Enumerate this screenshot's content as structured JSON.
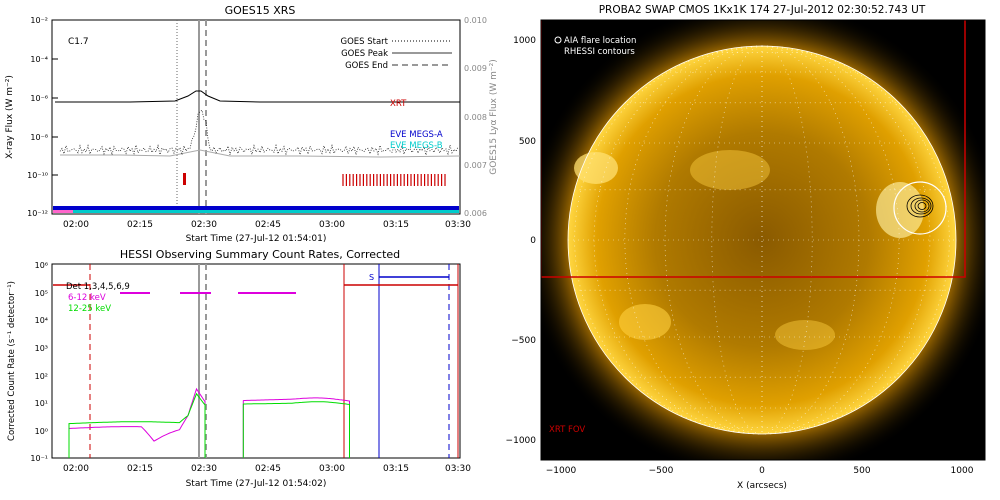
{
  "goes": {
    "title": "GOES15 XRS",
    "ylabel": "X-ray Flux (W m⁻²)",
    "y2label": "GOES15 Lyα Flux (W m⁻²)",
    "class_label": "C1.7",
    "legend": {
      "start": "GOES Start",
      "peak": "GOES Peak",
      "end": "GOES End"
    },
    "xlabel": "Start Time (27-Jul-12 01:54:01)",
    "xticks": [
      "02:00",
      "02:15",
      "02:30",
      "02:45",
      "03:00",
      "03:15",
      "03:30"
    ],
    "yticks": [
      "10⁻²",
      "10⁻⁴",
      "10⁻⁶",
      "10⁻⁸",
      "10⁻¹⁰",
      "10⁻¹²"
    ],
    "y2ticks": [
      "0.010",
      "0.009",
      "0.008",
      "0.007",
      "0.006"
    ],
    "labels": {
      "xrt": "XRT",
      "eve_a": "EVE MEGS-A",
      "eve_b": "EVE MEGS-B"
    }
  },
  "hessi": {
    "title": "HESSI Observing Summary Count Rates, Corrected",
    "ylabel": "Corrected Count Rate (s⁻¹ detector⁻¹)",
    "xlabel": "Start Time (27-Jul-12 01:54:02)",
    "xticks": [
      "02:00",
      "02:15",
      "02:30",
      "02:45",
      "03:00",
      "03:15",
      "03:30"
    ],
    "yticks": [
      "10⁶",
      "10⁵",
      "10⁴",
      "10³",
      "10²",
      "10¹",
      "10⁰",
      "10⁻¹"
    ],
    "legend": {
      "det": "Det 1,3,4,5,6,9",
      "low": "6-12 keV",
      "high": "12-25 keV"
    },
    "s_label": "S"
  },
  "swap": {
    "title": "PROBA2 SWAP CMOS 1Kx1K 174 27-Jul-2012 02:30:52.743 UT",
    "legend": {
      "aia": "AIA flare location",
      "rhessi": "RHESSI contours"
    },
    "xlabel": "X (arcsecs)",
    "xticks": [
      "−1000",
      "−500",
      "0",
      "500",
      "1000"
    ],
    "yticks": [
      "1000",
      "500",
      "0",
      "−500",
      "−1000"
    ],
    "xrt_fov": "XRT FOV"
  },
  "colors": {
    "red": "#cc0000",
    "blue": "#0000cc",
    "cyan": "#00cccc",
    "magenta": "#dd00dd",
    "green": "#00dd00",
    "sun": "#e8a800"
  },
  "chart_data": [
    {
      "type": "line",
      "title": "GOES15 XRS",
      "xlabel": "Start Time (27-Jul-12 01:54:01)",
      "ylabel": "X-ray Flux (W m^-2)",
      "y_scale": "log",
      "ylim": [
        1e-12,
        0.01
      ],
      "xlim": [
        "01:54",
        "03:30"
      ],
      "series": [
        {
          "name": "XRT",
          "x": [
            "01:54",
            "02:15",
            "02:24",
            "02:28",
            "02:30",
            "02:34",
            "02:40",
            "03:00",
            "03:30"
          ],
          "values": [
            3e-07,
            3e-07,
            3.5e-07,
            1e-06,
            1.2e-06,
            6e-07,
            3.5e-07,
            3e-07,
            3e-07
          ]
        },
        {
          "name": "EVE MEGS-A",
          "x": [
            "01:54",
            "03:30"
          ],
          "values": [
            1e-12,
            1e-12
          ]
        },
        {
          "name": "EVE MEGS-B",
          "x": [
            "01:54",
            "03:30"
          ],
          "values": [
            1e-12,
            1e-12
          ]
        }
      ],
      "markers": {
        "GOES Start": "02:24",
        "GOES Peak": "02:29",
        "GOES End": "02:31"
      },
      "annotation": "C1.7"
    },
    {
      "type": "line",
      "title": "HESSI Observing Summary Count Rates, Corrected",
      "xlabel": "Start Time (27-Jul-12 01:54:02)",
      "ylabel": "Corrected Count Rate (s^-1 detector^-1)",
      "y_scale": "log",
      "ylim": [
        0.1,
        1000000.0
      ],
      "xlim": [
        "01:54",
        "03:30"
      ],
      "series": [
        {
          "name": "6-12 keV",
          "x": [
            "01:58",
            "02:15",
            "02:18",
            "02:24",
            "02:26",
            "02:28",
            "02:30",
            "02:39",
            "02:50",
            "03:04"
          ],
          "values": [
            1.2,
            1.2,
            0.4,
            1.0,
            3,
            30,
            12,
            12,
            14,
            12
          ]
        },
        {
          "name": "12-25 keV",
          "x": [
            "01:58",
            "02:24",
            "02:26",
            "02:28",
            "02:30",
            "02:39",
            "02:50",
            "03:04"
          ],
          "values": [
            1.8,
            1.8,
            3,
            20,
            9,
            9,
            10,
            9
          ]
        }
      ]
    },
    {
      "type": "heatmap",
      "title": "PROBA2 SWAP CMOS 1Kx1K 174 27-Jul-2012 02:30:52.743 UT",
      "xlabel": "X (arcsecs)",
      "xlim": [
        -1100,
        1100
      ],
      "ylim": [
        -1100,
        1100
      ],
      "annotations": [
        "AIA flare location",
        "RHESSI contours",
        "XRT FOV"
      ]
    }
  ]
}
